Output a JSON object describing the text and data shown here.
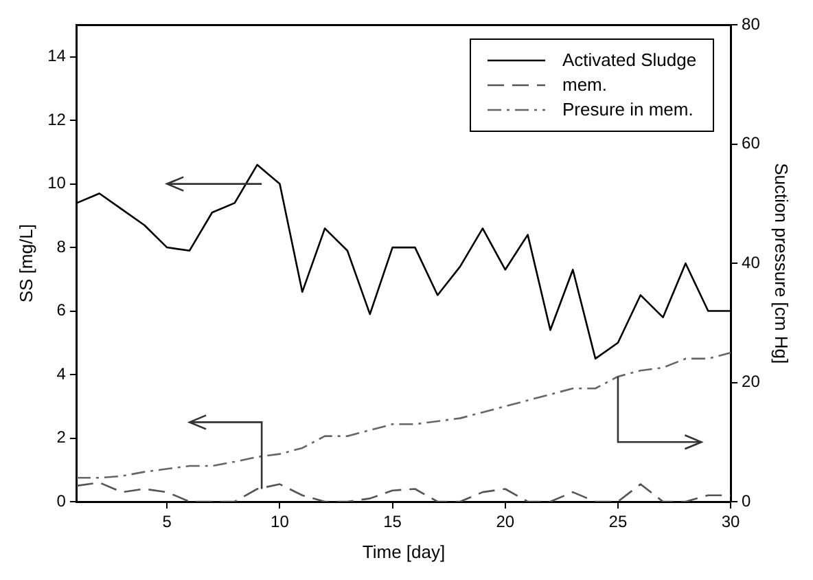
{
  "chart_data": {
    "type": "line",
    "xlabel": "Time [day]",
    "ylabel": "SS [mg/L]",
    "y2label": "Suction pressure [cm Hg]",
    "x": [
      1,
      2,
      3,
      4,
      5,
      6,
      7,
      8,
      9,
      10,
      11,
      12,
      13,
      14,
      15,
      16,
      17,
      18,
      19,
      20,
      21,
      22,
      23,
      24,
      25,
      26,
      27,
      28,
      29,
      30
    ],
    "xlim": [
      1,
      30
    ],
    "xticks": [
      5,
      10,
      15,
      20,
      25,
      30
    ],
    "ylim": [
      0,
      15
    ],
    "yticks": [
      0,
      2,
      4,
      6,
      8,
      10,
      12,
      14
    ],
    "y2lim": [
      0,
      80
    ],
    "y2ticks": [
      0,
      20,
      40,
      60,
      80
    ],
    "legend": "top right",
    "marker": "none",
    "series": [
      {
        "name": "Activated Sludge",
        "color": "#000000",
        "line_style": "solid",
        "values": [
          9.4,
          9.7,
          9.2,
          8.7,
          8.0,
          7.9,
          9.1,
          9.4,
          10.6,
          10.0,
          6.6,
          8.6,
          7.9,
          5.9,
          8.0,
          8.0,
          6.5,
          7.4,
          8.6,
          7.3,
          8.4,
          5.4,
          7.3,
          4.5,
          5.0,
          6.5,
          5.8,
          7.5,
          6.0,
          6.0
        ]
      },
      {
        "name": "mem.",
        "color": "#555555",
        "line_style": "dashed",
        "values": [
          0.5,
          0.6,
          0.3,
          0.4,
          0.3,
          0,
          0,
          0,
          0.4,
          0.55,
          0.2,
          0,
          0,
          0.1,
          0.35,
          0.4,
          0,
          0,
          0.3,
          0.4,
          0,
          0,
          0.3,
          0,
          0,
          0.55,
          0,
          0,
          0.2,
          0.2
        ]
      },
      {
        "name": "Presure in mem.",
        "color": "#666666",
        "line_style": "dashdot",
        "axis": "y2",
        "values": [
          4,
          4,
          4.3,
          5,
          5.5,
          6,
          6,
          6.7,
          7.5,
          8,
          9,
          11,
          11,
          12,
          13,
          13,
          13.5,
          14,
          15,
          16,
          17,
          18,
          19,
          19,
          21,
          22,
          22.5,
          24,
          24,
          25
        ]
      }
    ]
  }
}
